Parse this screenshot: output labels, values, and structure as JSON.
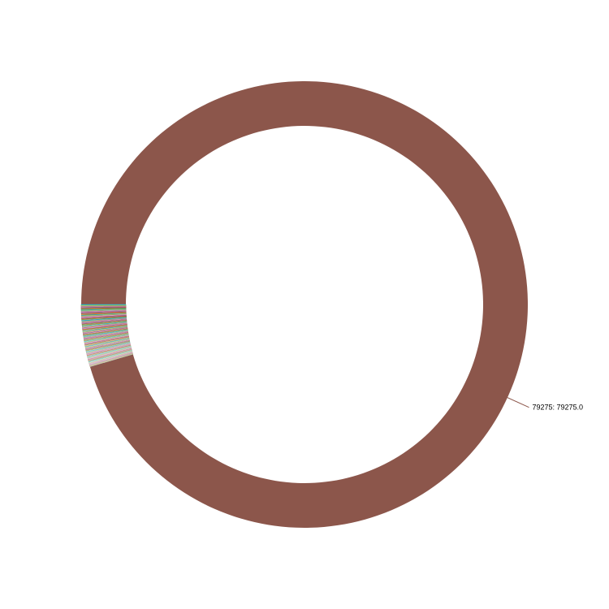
{
  "chart_data": {
    "type": "pie",
    "variant": "donut",
    "title": "",
    "legend": "none",
    "slices": [
      {
        "label": "79275",
        "value": 79275.0,
        "color": "#8c564b",
        "display_label": "79275: 79275.0"
      }
    ],
    "minor_slices": {
      "count": 120,
      "total_value": 3737.0,
      "labels_visible": false,
      "colors": [
        "#1f77b4",
        "#ff7f0e",
        "#2ca02c",
        "#d62728",
        "#9467bd",
        "#8c564b",
        "#e377c2",
        "#7f7f7f",
        "#bcbd22",
        "#17becf"
      ]
    },
    "start_angle_deg": 180,
    "direction": "clockwise"
  }
}
